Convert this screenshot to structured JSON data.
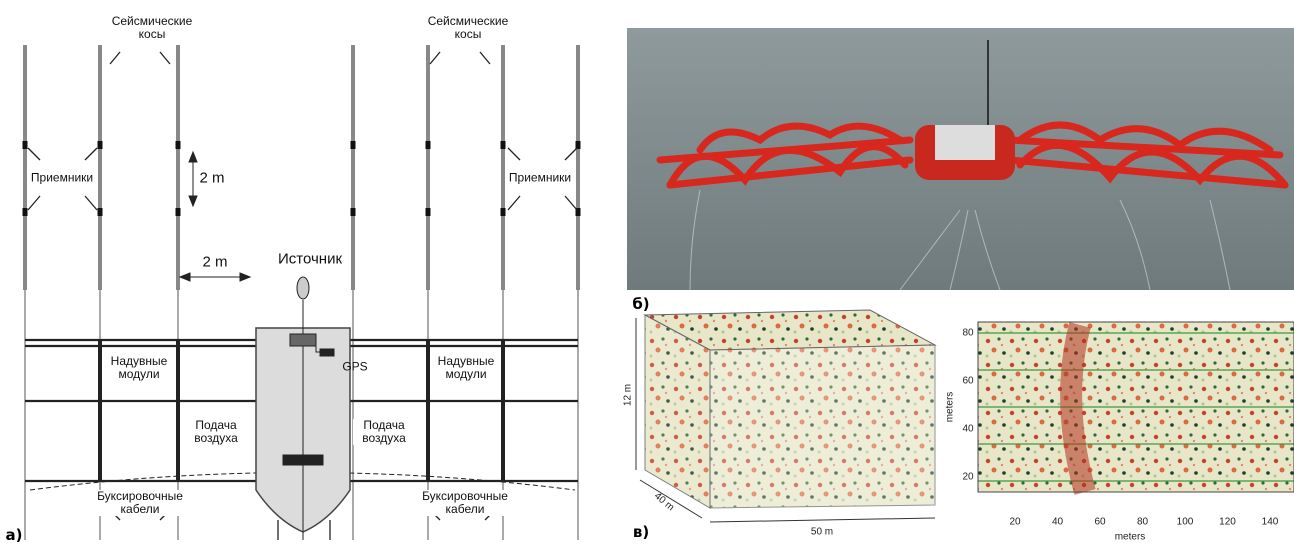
{
  "diagram": {
    "panel_label": "а)",
    "streamers": [
      "Сейсмические косы",
      "Сейсмические косы"
    ],
    "receivers": [
      "Приемники",
      "Приемники"
    ],
    "spacing": [
      "2 m",
      "2 m"
    ],
    "source": "Источник",
    "gps": "GPS",
    "floats": [
      "Надувные модули",
      "Надувные модули"
    ],
    "air_supply": [
      "Подача воздуха",
      "Подача воздуха"
    ],
    "tow_cables": [
      "Буксировочные кабели",
      "Буксировочные кабели"
    ]
  },
  "photo": {
    "panel_label": "б)"
  },
  "seismic": {
    "panel_label": "в)",
    "cube": {
      "height": "12 m",
      "depth": "40 m",
      "width": "50 m"
    },
    "slice": {
      "y_label": "meters",
      "x_label": "meters",
      "yticks": [
        "80",
        "60",
        "40",
        "20"
      ],
      "xticks": [
        "20",
        "40",
        "60",
        "80",
        "100",
        "120",
        "140"
      ]
    }
  }
}
